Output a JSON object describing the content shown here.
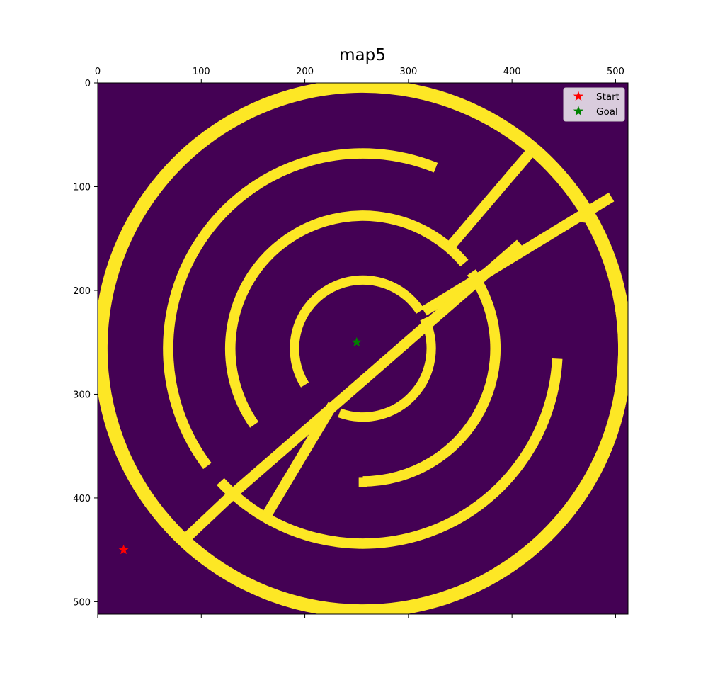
{
  "chart_data": {
    "type": "heatmap",
    "title": "map5",
    "xlabel": "",
    "ylabel": "",
    "image_size": [
      512,
      512
    ],
    "xlim": [
      0,
      512
    ],
    "ylim": [
      512,
      0
    ],
    "x_axis_position": "top",
    "x_ticks": [
      0,
      100,
      200,
      300,
      400,
      500
    ],
    "y_ticks": [
      0,
      100,
      200,
      300,
      400,
      500
    ],
    "grid": false,
    "colors": {
      "free": "#440154",
      "wall": "#fde725"
    },
    "walls": [
      {
        "type": "arc",
        "cx": 256,
        "cy": 256,
        "r": 253,
        "w": 13,
        "start_deg": 117,
        "end_deg": 59
      },
      {
        "type": "arc",
        "cx": 256,
        "cy": 256,
        "r": 253,
        "w": 13,
        "start_deg": -19,
        "end_deg": 130
      },
      {
        "type": "arc",
        "cx": 256,
        "cy": 256,
        "r": 188,
        "w": 10,
        "start_deg": 143,
        "end_deg": 292
      },
      {
        "type": "arc",
        "cx": 256,
        "cy": 256,
        "r": 188,
        "w": 10,
        "start_deg": 3,
        "end_deg": 137
      },
      {
        "type": "arc",
        "cx": 256,
        "cy": 256,
        "r": 128,
        "w": 10,
        "start_deg": 145,
        "end_deg": 320
      },
      {
        "type": "arc",
        "cx": 256,
        "cy": 256,
        "r": 128,
        "w": 10,
        "start_deg": -35,
        "end_deg": 90
      },
      {
        "type": "arc",
        "cx": 256,
        "cy": 256,
        "r": 66,
        "w": 9,
        "start_deg": 148,
        "end_deg": 327
      },
      {
        "type": "arc",
        "cx": 256,
        "cy": 256,
        "r": 66,
        "w": 9,
        "start_deg": -26,
        "end_deg": 110
      },
      {
        "type": "line",
        "points": [
          [
            340,
            158
          ],
          [
            422,
            62
          ]
        ],
        "w": 10
      },
      {
        "type": "line",
        "points": [
          [
            315,
            220
          ],
          [
            496,
            110
          ]
        ],
        "w": 10
      },
      {
        "type": "line",
        "points": [
          [
            465,
            129
          ],
          [
            473,
            130
          ]
        ],
        "w": 10
      },
      {
        "type": "line",
        "points": [
          [
            227,
            310
          ],
          [
            161,
            420
          ]
        ],
        "w": 10
      },
      {
        "type": "line",
        "points": [
          [
            408,
            155
          ],
          [
            135,
            392
          ],
          [
            84,
            440
          ]
        ],
        "w": 10
      },
      {
        "type": "line",
        "points": [
          [
            252,
            385
          ],
          [
            260,
            385
          ]
        ],
        "w": 9
      }
    ],
    "markers": [
      {
        "name": "Start",
        "x": 25,
        "y": 450,
        "color": "#ff0000",
        "shape": "star"
      },
      {
        "name": "Goal",
        "x": 250,
        "y": 250,
        "color": "#008000",
        "shape": "star"
      }
    ],
    "legend": {
      "position": "top-right",
      "entries": [
        "Start",
        "Goal"
      ]
    }
  }
}
